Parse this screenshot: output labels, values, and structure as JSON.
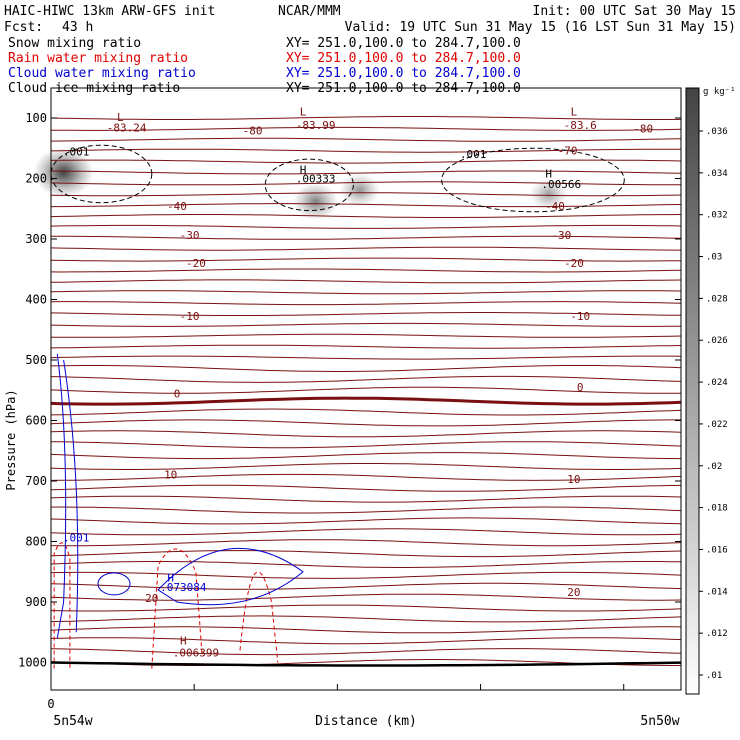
{
  "header": {
    "title": "HAIC-HIWC 13km ARW-GFS init",
    "center": "NCAR/MMM",
    "init": "Init: 00 UTC Sat 30 May 15",
    "fcst_label": "Fcst:",
    "fcst_value": "43 h",
    "valid": "Valid: 19 UTC Sun 31 May 15 (16 LST Sun 31 May 15)"
  },
  "fields": [
    {
      "name": "Snow mixing ratio",
      "xy": "XY= 251.0,100.0 to 284.7,100.0",
      "color": "#000000"
    },
    {
      "name": "Rain water mixing ratio",
      "xy": "XY= 251.0,100.0 to 284.7,100.0",
      "color": "#e00000"
    },
    {
      "name": "Cloud water mixing ratio",
      "xy": "XY= 251.0,100.0 to 284.7,100.0",
      "color": "#0000d0"
    },
    {
      "name": "Cloud ice mixing ratio",
      "xy": "XY= 251.0,100.0 to 284.7,100.0",
      "color": "#000000"
    }
  ],
  "colorbar": {
    "unit": "g kg⁻¹",
    "ticks": [
      ".01",
      ".012",
      ".014",
      ".016",
      ".018",
      ".02",
      ".022",
      ".024",
      ".026",
      ".028",
      ".03",
      ".032",
      ".034",
      ".036"
    ]
  },
  "chart_data": {
    "type": "cross-section",
    "ylabel": "Pressure (hPa)",
    "xlabel": "Distance (km)",
    "x_left_label": "5n54w",
    "x_right_label": "5n50w",
    "x_origin_label": "0",
    "yticks": [
      100,
      200,
      300,
      400,
      500,
      600,
      700,
      800,
      900,
      1000
    ],
    "ylim": [
      1060,
      40
    ],
    "temperature_isotherms_c": [
      -80,
      -70,
      -60,
      -50,
      -40,
      -30,
      -20,
      -10,
      0,
      10,
      20
    ],
    "temperature_contour_labels": [
      {
        "text": "-83.24",
        "p": 122,
        "x": 0.12
      },
      {
        "text": "L",
        "p": 105,
        "x": 0.11
      },
      {
        "text": "L",
        "p": 96,
        "x": 0.4
      },
      {
        "text": "-83.99",
        "p": 118,
        "x": 0.42
      },
      {
        "text": "L",
        "p": 96,
        "x": 0.83
      },
      {
        "text": "-83.6",
        "p": 118,
        "x": 0.84
      },
      {
        "text": "-80",
        "p": 127,
        "x": 0.32
      },
      {
        "text": "-80",
        "p": 124,
        "x": 0.94
      },
      {
        "text": "-70",
        "p": 160,
        "x": 0.82
      },
      {
        "text": "-40",
        "p": 252,
        "x": 0.2
      },
      {
        "text": "-40",
        "p": 252,
        "x": 0.8
      },
      {
        "text": "-30",
        "p": 300,
        "x": 0.22
      },
      {
        "text": "-30",
        "p": 300,
        "x": 0.81
      },
      {
        "text": "-20",
        "p": 346,
        "x": 0.23
      },
      {
        "text": "-20",
        "p": 346,
        "x": 0.83
      },
      {
        "text": "-10",
        "p": 434,
        "x": 0.22
      },
      {
        "text": "-10",
        "p": 434,
        "x": 0.84
      },
      {
        "text": "0",
        "p": 562,
        "x": 0.2
      },
      {
        "text": "0",
        "p": 551,
        "x": 0.84
      },
      {
        "text": "10",
        "p": 696,
        "x": 0.19
      },
      {
        "text": "10",
        "p": 703,
        "x": 0.83
      },
      {
        "text": "20",
        "p": 900,
        "x": 0.16
      },
      {
        "text": "20",
        "p": 890,
        "x": 0.83
      },
      {
        "text": "H",
        "p": 970,
        "x": 0.21
      },
      {
        "text": ".006399",
        "p": 990,
        "x": 0.23
      }
    ],
    "cloud_ice_labels": [
      {
        "text": ".001",
        "p": 162,
        "x": 0.04
      },
      {
        "text": "H",
        "p": 192,
        "x": 0.4
      },
      {
        "text": ".00333",
        "p": 207,
        "x": 0.42
      },
      {
        "text": ".001",
        "p": 166,
        "x": 0.67
      },
      {
        "text": "H",
        "p": 198,
        "x": 0.79
      },
      {
        "text": ".00566",
        "p": 216,
        "x": 0.81
      }
    ],
    "cloud_water_labels": [
      {
        "text": ".001",
        "p": 800,
        "x": 0.04
      },
      {
        "text": "H",
        "p": 866,
        "x": 0.19
      },
      {
        "text": ".073084",
        "p": 882,
        "x": 0.21
      }
    ],
    "snow_maxima": [
      {
        "p": 190,
        "x": 0.02,
        "value": 0.036
      },
      {
        "p": 238,
        "x": 0.42,
        "value": 0.024
      },
      {
        "p": 219,
        "x": 0.49,
        "value": 0.02
      },
      {
        "p": 226,
        "x": 0.79,
        "value": 0.018
      }
    ]
  }
}
